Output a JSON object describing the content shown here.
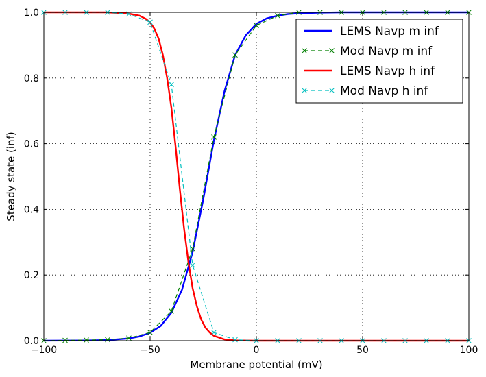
{
  "chart_data": {
    "type": "line",
    "title": "",
    "xlabel": "Membrane potential (mV)",
    "ylabel": "Steady state (inf)",
    "xlim": [
      -100,
      100
    ],
    "ylim": [
      0.0,
      1.0
    ],
    "xticks": [
      -100,
      -50,
      0,
      50,
      100
    ],
    "xtick_labels": [
      "−100",
      "−50",
      "0",
      "50",
      "100"
    ],
    "yticks": [
      0.0,
      0.2,
      0.4,
      0.6,
      0.8,
      1.0
    ],
    "ytick_labels": [
      "0.0",
      "0.2",
      "0.4",
      "0.6",
      "0.8",
      "1.0"
    ],
    "grid": true,
    "legend_position": "top-right",
    "series": [
      {
        "name": "LEMS Navp m inf",
        "color": "#0000ff",
        "style": "solid",
        "marker": "none",
        "x": [
          -100,
          -80,
          -70,
          -60,
          -55,
          -50,
          -45,
          -40,
          -35,
          -30,
          -25,
          -20,
          -15,
          -10,
          -5,
          0,
          5,
          10,
          15,
          20,
          30,
          40,
          60,
          80,
          100
        ],
        "y": [
          0.0001,
          0.0007,
          0.002,
          0.007,
          0.013,
          0.024,
          0.045,
          0.085,
          0.155,
          0.27,
          0.43,
          0.61,
          0.76,
          0.87,
          0.93,
          0.965,
          0.982,
          0.99,
          0.995,
          0.997,
          0.999,
          1.0,
          1.0,
          1.0,
          1.0
        ]
      },
      {
        "name": "Mod Navp m inf",
        "color": "#008000",
        "style": "dashed",
        "marker": "x",
        "x": [
          -100,
          -90,
          -80,
          -70,
          -60,
          -50,
          -40,
          -30,
          -20,
          -10,
          0,
          10,
          20,
          30,
          40,
          50,
          60,
          70,
          80,
          90,
          100
        ],
        "y": [
          0.0,
          0.001,
          0.002,
          0.003,
          0.008,
          0.025,
          0.09,
          0.28,
          0.62,
          0.87,
          0.96,
          0.99,
          1.0,
          1.0,
          1.0,
          1.0,
          1.0,
          1.0,
          1.0,
          1.0,
          1.0
        ]
      },
      {
        "name": "LEMS Navp h inf",
        "color": "#ff0000",
        "style": "solid",
        "marker": "none",
        "x": [
          -100,
          -70,
          -60,
          -55,
          -52,
          -50,
          -48,
          -46,
          -44,
          -42,
          -40,
          -38,
          -36,
          -34,
          -32,
          -30,
          -28,
          -26,
          -24,
          -22,
          -20,
          -15,
          -10,
          0,
          20,
          50,
          100
        ],
        "y": [
          1.0,
          1.0,
          0.996,
          0.99,
          0.98,
          0.97,
          0.95,
          0.92,
          0.87,
          0.8,
          0.71,
          0.59,
          0.46,
          0.34,
          0.24,
          0.16,
          0.105,
          0.065,
          0.04,
          0.025,
          0.015,
          0.004,
          0.001,
          0.0,
          0.0,
          0.0,
          0.0
        ]
      },
      {
        "name": "Mod Navp h inf",
        "color": "#00bfbf",
        "style": "dashed",
        "marker": "x",
        "x": [
          -100,
          -90,
          -80,
          -70,
          -60,
          -50,
          -40,
          -30,
          -20,
          -10,
          0,
          10,
          20,
          30,
          40,
          50,
          60,
          70,
          80,
          90,
          100
        ],
        "y": [
          1.0,
          1.0,
          1.0,
          1.0,
          0.995,
          0.97,
          0.78,
          0.23,
          0.025,
          0.003,
          0.0,
          0.0,
          0.0,
          0.0,
          0.0,
          0.0,
          0.0,
          0.0,
          0.0,
          0.0,
          0.0
        ]
      }
    ]
  }
}
